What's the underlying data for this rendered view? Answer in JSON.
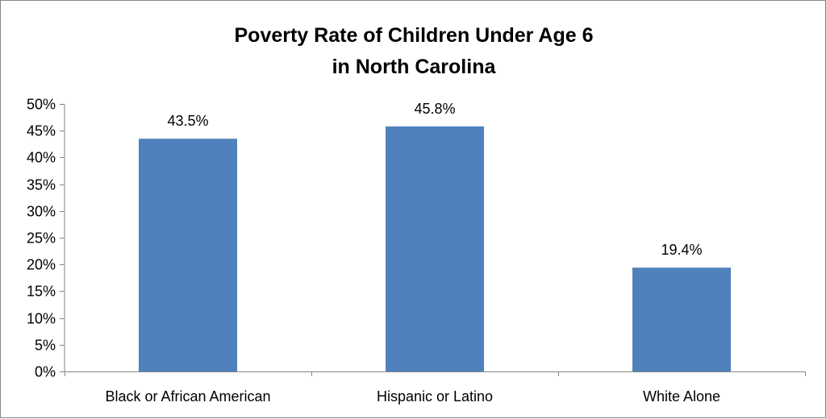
{
  "chart_data": {
    "type": "bar",
    "title_lines": [
      "Poverty Rate of Children Under Age 6",
      "in North Carolina"
    ],
    "categories": [
      "Black or African American",
      "Hispanic or Latino",
      "White Alone"
    ],
    "values": [
      43.5,
      45.8,
      19.4
    ],
    "data_labels": [
      "43.5%",
      "45.8%",
      "19.4%"
    ],
    "y_ticks": [
      {
        "value": 0,
        "label": "0%"
      },
      {
        "value": 5,
        "label": "5%"
      },
      {
        "value": 10,
        "label": "10%"
      },
      {
        "value": 15,
        "label": "15%"
      },
      {
        "value": 20,
        "label": "20%"
      },
      {
        "value": 25,
        "label": "25%"
      },
      {
        "value": 30,
        "label": "30%"
      },
      {
        "value": 35,
        "label": "35%"
      },
      {
        "value": 40,
        "label": "40%"
      },
      {
        "value": 45,
        "label": "45%"
      },
      {
        "value": 50,
        "label": "50%"
      }
    ],
    "ylim": [
      0,
      50
    ],
    "grid": false,
    "legend": "none",
    "bar_color": "#4F81BD",
    "axis_color": "#868686"
  }
}
